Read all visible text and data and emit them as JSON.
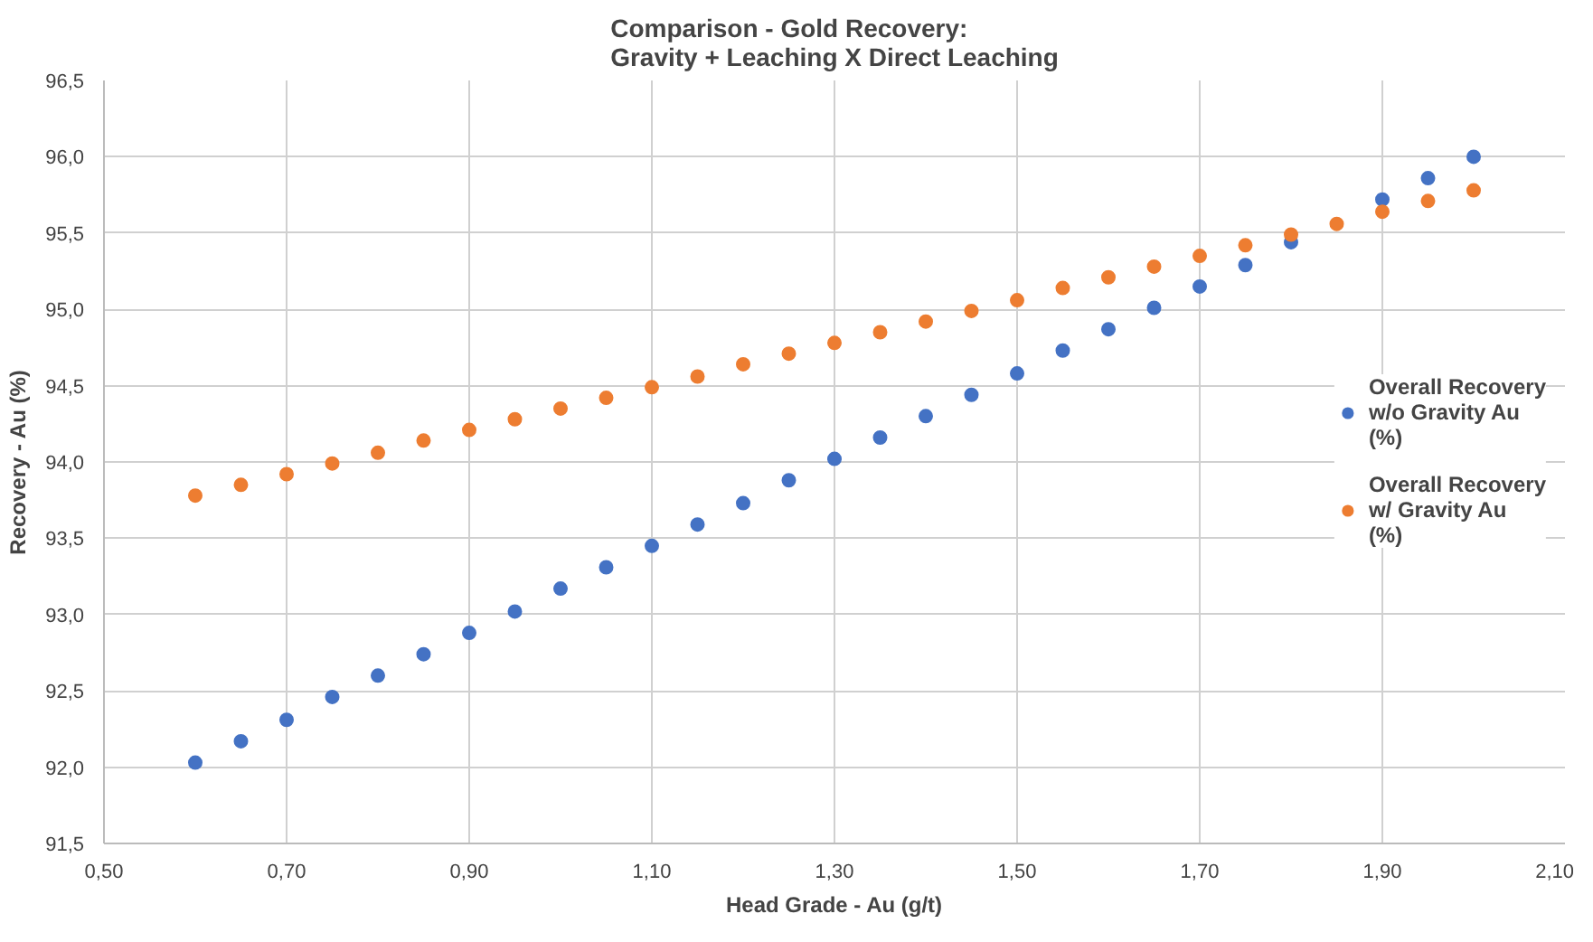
{
  "chart_data": {
    "type": "scatter",
    "title": "Comparison - Gold Recovery:\nGravity + Leaching X Direct Leaching",
    "xlabel": "Head Grade - Au (g/t)",
    "ylabel": "Recovery - Au (%)",
    "x": [
      0.6,
      0.65,
      0.7,
      0.75,
      0.8,
      0.85,
      0.9,
      0.95,
      1.0,
      1.05,
      1.1,
      1.15,
      1.2,
      1.25,
      1.3,
      1.35,
      1.4,
      1.45,
      1.5,
      1.55,
      1.6,
      1.65,
      1.7,
      1.75,
      1.8,
      1.85,
      1.9,
      1.95,
      2.0
    ],
    "series": [
      {
        "name": "Overall Recovery w/o Gravity Au (%)",
        "color": "#4472c4",
        "values": [
          92.03,
          92.17,
          92.31,
          92.46,
          92.6,
          92.74,
          92.88,
          93.02,
          93.17,
          93.31,
          93.45,
          93.59,
          93.73,
          93.88,
          94.02,
          94.16,
          94.3,
          94.44,
          94.58,
          94.73,
          94.87,
          95.01,
          95.15,
          95.29,
          95.44,
          null,
          95.72,
          95.86,
          96.0
        ]
      },
      {
        "name": "Overall Recovery w/ Gravity Au (%)",
        "color": "#ed7d31",
        "values": [
          93.78,
          93.85,
          93.92,
          93.99,
          94.06,
          94.14,
          94.21,
          94.28,
          94.35,
          94.42,
          94.49,
          94.56,
          94.64,
          94.71,
          94.78,
          94.85,
          94.92,
          94.99,
          95.06,
          95.14,
          95.21,
          95.28,
          95.35,
          95.42,
          95.49,
          95.56,
          95.64,
          95.71,
          95.78
        ]
      }
    ],
    "xlim": [
      0.5,
      2.1
    ],
    "xticks": [
      {
        "value": 0.5,
        "label": "0,50"
      },
      {
        "value": 0.7,
        "label": "0,70"
      },
      {
        "value": 0.9,
        "label": "0,90"
      },
      {
        "value": 1.1,
        "label": "1,10"
      },
      {
        "value": 1.3,
        "label": "1,30"
      },
      {
        "value": 1.5,
        "label": "1,50"
      },
      {
        "value": 1.7,
        "label": "1,70"
      },
      {
        "value": 1.9,
        "label": "1,90"
      },
      {
        "value": 2.1,
        "label": "2,10"
      }
    ],
    "ylim": [
      91.5,
      96.5
    ],
    "yticks": [
      {
        "value": 91.5,
        "label": "91,5"
      },
      {
        "value": 92.0,
        "label": "92,0"
      },
      {
        "value": 92.5,
        "label": "92,5"
      },
      {
        "value": 93.0,
        "label": "93,0"
      },
      {
        "value": 93.5,
        "label": "93,5"
      },
      {
        "value": 94.0,
        "label": "94,0"
      },
      {
        "value": 94.5,
        "label": "94,5"
      },
      {
        "value": 95.0,
        "label": "95,0"
      },
      {
        "value": 95.5,
        "label": "95,5"
      },
      {
        "value": 96.0,
        "label": "96,0"
      },
      {
        "value": 96.5,
        "label": "96,5"
      }
    ],
    "grid": true,
    "legend": "right",
    "marker": "circle"
  }
}
